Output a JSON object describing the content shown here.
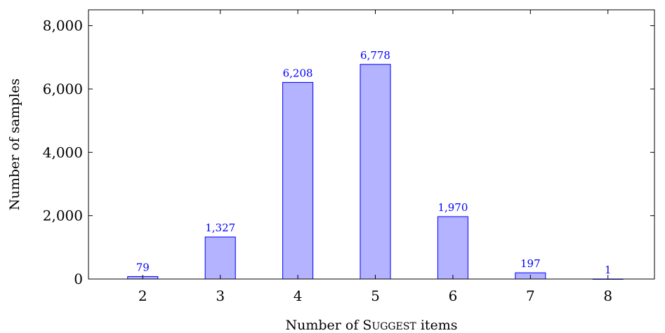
{
  "chart_data": {
    "type": "bar",
    "categories": [
      "2",
      "3",
      "4",
      "5",
      "6",
      "7",
      "8"
    ],
    "values": [
      79,
      1327,
      6208,
      6778,
      1970,
      197,
      1
    ],
    "data_labels": [
      "79",
      "1,327",
      "6,208",
      "6,778",
      "1,970",
      "197",
      "1"
    ],
    "xlabel": "Number of Suggest items",
    "ylabel": "Number of samples",
    "ylim": [
      0,
      8500
    ],
    "yticks": [
      0,
      2000,
      4000,
      6000,
      8000
    ],
    "ytick_labels": [
      "0",
      "2,000",
      "4,000",
      "6,000",
      "8,000"
    ],
    "grid": false,
    "bar_fill": "#b3b3ff",
    "bar_stroke": "#0000ff",
    "label_color": "#0000ff"
  }
}
